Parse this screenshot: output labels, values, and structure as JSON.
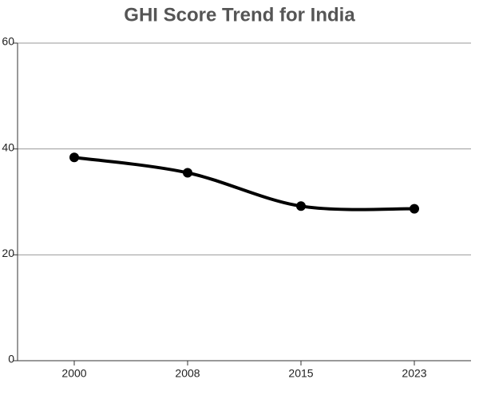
{
  "chart_data": {
    "type": "line",
    "title": "GHI Score Trend for India",
    "categories": [
      "2000",
      "2008",
      "2015",
      "2023"
    ],
    "values": [
      38.4,
      35.5,
      29.2,
      28.7
    ],
    "color": "#000000",
    "smooth": true,
    "ylim": [
      0,
      60
    ],
    "yticks": [
      0,
      20,
      40,
      60
    ],
    "grid": true
  }
}
